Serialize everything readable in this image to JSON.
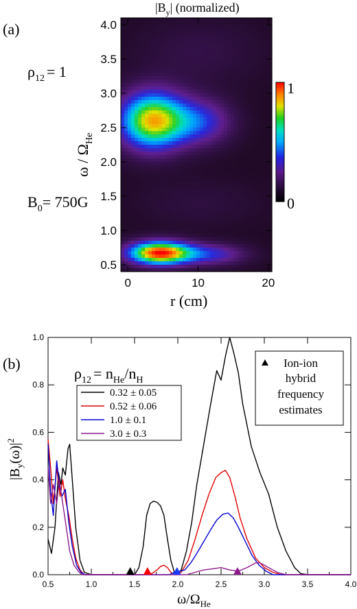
{
  "figure": {
    "panel_a_label": "(a)",
    "panel_b_label": "(b)"
  },
  "chart_data": [
    {
      "type": "heatmap",
      "title": "|B_y| (normalized)",
      "title_main": "|B",
      "title_sub": "y",
      "title_rest": "| (normalized)",
      "xlabel": "r (cm)",
      "ylabel_main": "ω / Ω",
      "ylabel_sub": "He",
      "xlim": [
        -1,
        20.5
      ],
      "ylim": [
        0.4,
        4.1
      ],
      "xticks": [
        "0",
        "10",
        "20"
      ],
      "xtick_values": [
        0,
        10,
        20
      ],
      "yticks": [
        "0.5",
        "1.0",
        "1.5",
        "2.0",
        "2.5",
        "3.0",
        "3.5",
        "4.0"
      ],
      "ytick_values": [
        0.5,
        1.0,
        1.5,
        2.0,
        2.5,
        3.0,
        3.5,
        4.0
      ],
      "colorbar": {
        "min_label": "0",
        "max_label": "1",
        "colormap": "rainbow"
      },
      "annotations": {
        "rho_main": "ρ",
        "rho_sub": "12",
        "rho_value": "= 1",
        "b_main": "B",
        "b_sub": "0",
        "b_value": "= 750G"
      },
      "blobs": [
        {
          "r": 3.5,
          "w": 2.6,
          "amp": 0.82,
          "sr": 4.8,
          "sw": 0.42
        },
        {
          "r": 10.5,
          "w": 2.58,
          "amp": 0.32,
          "sr": 4.5,
          "sw": 0.34
        },
        {
          "r": 4.5,
          "w": 0.67,
          "amp": 0.98,
          "sr": 4.5,
          "sw": 0.17
        },
        {
          "r": 12.0,
          "w": 0.65,
          "amp": 0.3,
          "sr": 5.0,
          "sw": 0.16
        },
        {
          "r": 10.0,
          "w": 3.6,
          "amp": 0.08,
          "sr": 9.0,
          "sw": 0.5
        },
        {
          "r": 10.0,
          "w": 1.4,
          "amp": 0.06,
          "sr": 9.0,
          "sw": 0.35
        }
      ]
    },
    {
      "type": "line",
      "ylabel_main": "|B",
      "ylabel_sub": "y",
      "ylabel_rest": "(ω)|",
      "ylabel_sup": "2",
      "xlabel_main": "ω/Ω",
      "xlabel_sub": "He",
      "xlim": [
        0.5,
        4.0
      ],
      "ylim": [
        0.0,
        1.0
      ],
      "xticks": [
        "0.5",
        "1.0",
        "1.5",
        "2.0",
        "2.5",
        "3.0",
        "3.5",
        "4.0"
      ],
      "xtick_values": [
        0.5,
        1.0,
        1.5,
        2.0,
        2.5,
        3.0,
        3.5,
        4.0
      ],
      "yticks": [
        "0.0",
        "0.2",
        "0.4",
        "0.6",
        "0.8",
        "1.0"
      ],
      "ytick_values": [
        0.0,
        0.2,
        0.4,
        0.6,
        0.8,
        1.0
      ],
      "legend_title_main": "ρ",
      "legend_title_sub": "12",
      "legend_title_rest": "= n",
      "legend_title_sub2": "He",
      "legend_title_rest2": "/n",
      "legend_title_sub3": "H",
      "inset_text": [
        "Ion-ion",
        "hybrid",
        "frequency",
        "estimates"
      ],
      "series": [
        {
          "name": "0.32 ± 0.05",
          "color": "#000000",
          "points": [
            [
              0.5,
              0.15
            ],
            [
              0.54,
              0.09
            ],
            [
              0.58,
              0.2
            ],
            [
              0.62,
              0.43
            ],
            [
              0.65,
              0.38
            ],
            [
              0.67,
              0.45
            ],
            [
              0.7,
              0.42
            ],
            [
              0.73,
              0.53
            ],
            [
              0.75,
              0.55
            ],
            [
              0.78,
              0.4
            ],
            [
              0.82,
              0.2
            ],
            [
              0.87,
              0.06
            ],
            [
              0.92,
              0.01
            ],
            [
              1.0,
              0.0
            ],
            [
              1.5,
              0.0
            ],
            [
              1.55,
              0.03
            ],
            [
              1.6,
              0.12
            ],
            [
              1.64,
              0.25
            ],
            [
              1.68,
              0.3
            ],
            [
              1.72,
              0.31
            ],
            [
              1.76,
              0.305
            ],
            [
              1.8,
              0.29
            ],
            [
              1.84,
              0.25
            ],
            [
              1.88,
              0.15
            ],
            [
              1.92,
              0.06
            ],
            [
              1.96,
              0.01
            ],
            [
              2.0,
              0.005
            ],
            [
              2.04,
              0.02
            ],
            [
              2.1,
              0.1
            ],
            [
              2.16,
              0.22
            ],
            [
              2.22,
              0.38
            ],
            [
              2.3,
              0.55
            ],
            [
              2.38,
              0.72
            ],
            [
              2.45,
              0.86
            ],
            [
              2.5,
              0.82
            ],
            [
              2.55,
              0.92
            ],
            [
              2.6,
              1.0
            ],
            [
              2.65,
              0.93
            ],
            [
              2.7,
              0.85
            ],
            [
              2.75,
              0.72
            ],
            [
              2.85,
              0.54
            ],
            [
              2.95,
              0.43
            ],
            [
              3.05,
              0.34
            ],
            [
              3.15,
              0.2
            ],
            [
              3.25,
              0.1
            ],
            [
              3.35,
              0.03
            ],
            [
              3.42,
              0.005
            ],
            [
              3.5,
              0.0
            ],
            [
              4.0,
              0.0
            ]
          ]
        },
        {
          "name": "0.52 ± 0.06",
          "color": "#e00000",
          "points": [
            [
              0.5,
              0.57
            ],
            [
              0.53,
              0.45
            ],
            [
              0.56,
              0.3
            ],
            [
              0.6,
              0.45
            ],
            [
              0.64,
              0.33
            ],
            [
              0.67,
              0.4
            ],
            [
              0.7,
              0.32
            ],
            [
              0.74,
              0.25
            ],
            [
              0.78,
              0.15
            ],
            [
              0.82,
              0.07
            ],
            [
              0.87,
              0.02
            ],
            [
              0.92,
              0.0
            ],
            [
              1.0,
              0.0
            ],
            [
              1.6,
              0.0
            ],
            [
              1.7,
              0.005
            ],
            [
              1.76,
              0.02
            ],
            [
              1.8,
              0.035
            ],
            [
              1.84,
              0.04
            ],
            [
              1.88,
              0.03
            ],
            [
              1.92,
              0.01
            ],
            [
              1.97,
              0.0
            ],
            [
              2.04,
              0.01
            ],
            [
              2.12,
              0.06
            ],
            [
              2.2,
              0.15
            ],
            [
              2.28,
              0.25
            ],
            [
              2.36,
              0.34
            ],
            [
              2.44,
              0.41
            ],
            [
              2.5,
              0.43
            ],
            [
              2.55,
              0.44
            ],
            [
              2.6,
              0.41
            ],
            [
              2.66,
              0.33
            ],
            [
              2.72,
              0.24
            ],
            [
              2.8,
              0.15
            ],
            [
              2.9,
              0.07
            ],
            [
              3.0,
              0.03
            ],
            [
              3.1,
              0.01
            ],
            [
              3.2,
              0.0
            ],
            [
              4.0,
              0.0
            ]
          ]
        },
        {
          "name": "1.0 ± 0.1",
          "color": "#0000d0",
          "points": [
            [
              0.5,
              0.55
            ],
            [
              0.53,
              0.35
            ],
            [
              0.56,
              0.25
            ],
            [
              0.6,
              0.48
            ],
            [
              0.63,
              0.38
            ],
            [
              0.66,
              0.33
            ],
            [
              0.7,
              0.36
            ],
            [
              0.74,
              0.22
            ],
            [
              0.78,
              0.12
            ],
            [
              0.83,
              0.04
            ],
            [
              0.88,
              0.01
            ],
            [
              0.93,
              0.0
            ],
            [
              1.0,
              0.0
            ],
            [
              1.9,
              0.0
            ],
            [
              1.96,
              0.01
            ],
            [
              2.02,
              0.015
            ],
            [
              2.08,
              0.02
            ],
            [
              2.15,
              0.05
            ],
            [
              2.22,
              0.09
            ],
            [
              2.3,
              0.14
            ],
            [
              2.38,
              0.19
            ],
            [
              2.45,
              0.23
            ],
            [
              2.52,
              0.255
            ],
            [
              2.58,
              0.26
            ],
            [
              2.64,
              0.24
            ],
            [
              2.7,
              0.2
            ],
            [
              2.78,
              0.14
            ],
            [
              2.86,
              0.08
            ],
            [
              2.94,
              0.04
            ],
            [
              3.02,
              0.015
            ],
            [
              3.1,
              0.0
            ],
            [
              4.0,
              0.0
            ]
          ]
        },
        {
          "name": "3.0 ± 0.3",
          "color": "#8b1a8b",
          "points": [
            [
              0.5,
              0.45
            ],
            [
              0.53,
              0.3
            ],
            [
              0.56,
              0.38
            ],
            [
              0.6,
              0.3
            ],
            [
              0.63,
              0.4
            ],
            [
              0.67,
              0.3
            ],
            [
              0.71,
              0.2
            ],
            [
              0.75,
              0.1
            ],
            [
              0.8,
              0.04
            ],
            [
              0.86,
              0.01
            ],
            [
              0.9,
              0.0
            ],
            [
              1.0,
              0.0
            ],
            [
              2.1,
              0.0
            ],
            [
              2.2,
              0.01
            ],
            [
              2.3,
              0.02
            ],
            [
              2.4,
              0.025
            ],
            [
              2.5,
              0.03
            ],
            [
              2.6,
              0.02
            ],
            [
              2.7,
              0.015
            ],
            [
              2.8,
              0.03
            ],
            [
              2.9,
              0.05
            ],
            [
              2.95,
              0.05
            ],
            [
              3.05,
              0.03
            ],
            [
              3.15,
              0.01
            ],
            [
              3.25,
              0.0
            ],
            [
              4.0,
              0.0
            ]
          ]
        }
      ],
      "markers": [
        {
          "x": 1.45,
          "color": "#000000"
        },
        {
          "x": 1.65,
          "color": "#ff0000"
        },
        {
          "x": 1.99,
          "color": "#1a3cff"
        },
        {
          "x": 2.69,
          "color": "#8b1a8b"
        }
      ]
    }
  ]
}
